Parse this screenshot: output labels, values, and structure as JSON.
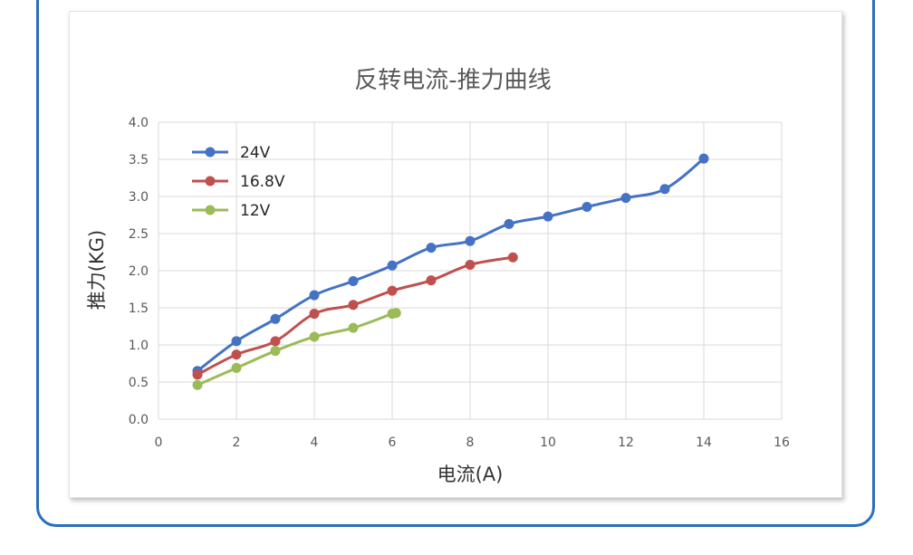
{
  "chart_data": {
    "type": "line",
    "title": "反转电流-推力曲线",
    "xlabel": "电流(A)",
    "ylabel": "推力(KG)",
    "xlim": [
      0,
      16
    ],
    "ylim": [
      0,
      4.0
    ],
    "x_ticks": [
      "0",
      "2",
      "4",
      "6",
      "8",
      "10",
      "12",
      "14",
      "16"
    ],
    "y_ticks": [
      "0.0",
      "0.5",
      "1.0",
      "1.5",
      "2.0",
      "2.5",
      "3.0",
      "3.5",
      "4.0"
    ],
    "grid": true,
    "legend_position": "top-left",
    "series": [
      {
        "name": "24V",
        "color": "#4472c4",
        "x": [
          1,
          2,
          3,
          4,
          5,
          6,
          7,
          8,
          9,
          10,
          11,
          12,
          13,
          14
        ],
        "y": [
          0.65,
          1.05,
          1.35,
          1.67,
          1.86,
          2.07,
          2.31,
          2.4,
          2.63,
          2.73,
          2.86,
          2.98,
          3.1,
          3.51
        ]
      },
      {
        "name": "16.8V",
        "color": "#c0504d",
        "x": [
          1,
          2,
          3,
          4,
          5,
          6,
          7,
          8,
          9.1
        ],
        "y": [
          0.6,
          0.87,
          1.05,
          1.42,
          1.54,
          1.73,
          1.87,
          2.08,
          2.18
        ]
      },
      {
        "name": "12V",
        "color": "#9bbb59",
        "x": [
          1,
          2,
          3,
          4,
          5,
          6,
          6.1
        ],
        "y": [
          0.46,
          0.69,
          0.92,
          1.11,
          1.23,
          1.42,
          1.43
        ]
      }
    ]
  }
}
